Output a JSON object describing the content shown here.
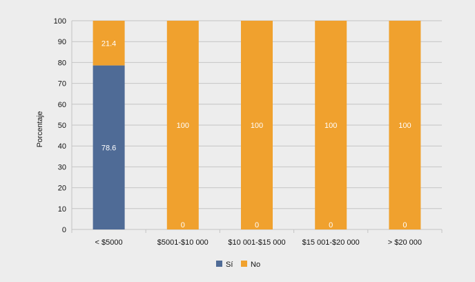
{
  "chart_data": {
    "type": "bar",
    "stacked": true,
    "categories": [
      "< $5000",
      "$5001-$10 000",
      "$10 001-$15 000",
      "$15 001-$20 000",
      "> $20 000"
    ],
    "series": [
      {
        "name": "Sí",
        "color": "#4f6b96",
        "values": [
          78.6,
          0,
          0,
          0,
          0
        ],
        "labels": [
          "78.6",
          "0",
          "0",
          "0",
          "0"
        ]
      },
      {
        "name": "No",
        "color": "#f0a12e",
        "values": [
          21.4,
          100,
          100,
          100,
          100
        ],
        "labels": [
          "21.4",
          "100",
          "100",
          "100",
          "100"
        ]
      }
    ],
    "ylabel": "Porcentaje",
    "xlabel": "",
    "ylim": [
      0,
      100
    ],
    "yticks": [
      "0",
      "10",
      "20",
      "30",
      "40",
      "50",
      "60",
      "70",
      "80",
      "90",
      "100"
    ],
    "grid": true,
    "legend_position": "bottom"
  }
}
